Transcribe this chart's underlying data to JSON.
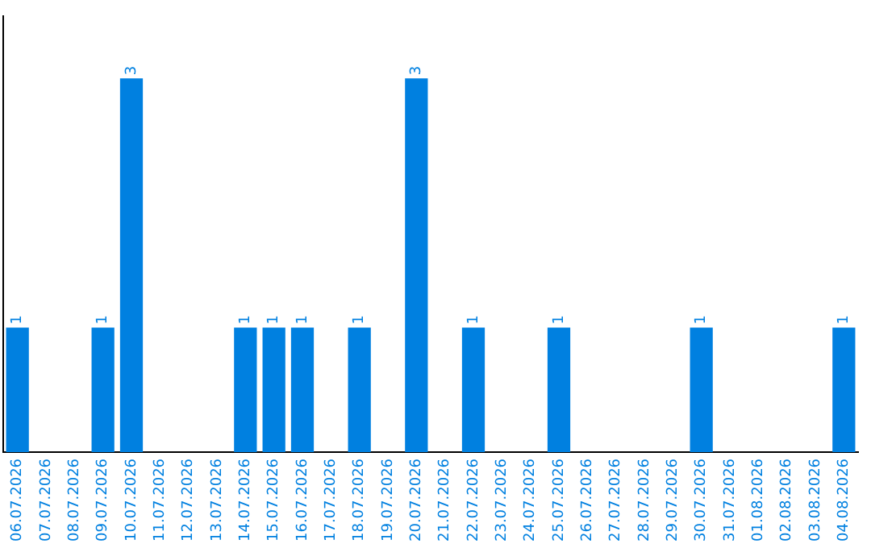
{
  "chart_data": {
    "type": "bar",
    "categories": [
      "06.07.2026",
      "07.07.2026",
      "08.07.2026",
      "09.07.2026",
      "10.07.2026",
      "11.07.2026",
      "12.07.2026",
      "13.07.2026",
      "14.07.2026",
      "15.07.2026",
      "16.07.2026",
      "17.07.2026",
      "18.07.2026",
      "19.07.2026",
      "20.07.2026",
      "21.07.2026",
      "22.07.2026",
      "23.07.2026",
      "24.07.2026",
      "25.07.2026",
      "26.07.2026",
      "27.07.2026",
      "28.07.2026",
      "29.07.2026",
      "30.07.2026",
      "31.07.2026",
      "01.08.2026",
      "02.08.2026",
      "03.08.2026",
      "04.08.2026"
    ],
    "values": [
      1,
      0,
      0,
      1,
      3,
      0,
      0,
      0,
      1,
      1,
      1,
      0,
      1,
      0,
      3,
      0,
      1,
      0,
      0,
      1,
      0,
      0,
      0,
      0,
      1,
      0,
      0,
      0,
      0,
      1
    ],
    "value_labels": [
      "1",
      null,
      null,
      "1",
      "3",
      null,
      null,
      null,
      "1",
      "1",
      "1",
      null,
      "1",
      null,
      "3",
      null,
      "1",
      null,
      null,
      "1",
      null,
      null,
      null,
      null,
      "1",
      null,
      null,
      null,
      null,
      "1"
    ],
    "color": "#0080e0",
    "tick_labels": "x",
    "grid": false,
    "legend": false
  }
}
